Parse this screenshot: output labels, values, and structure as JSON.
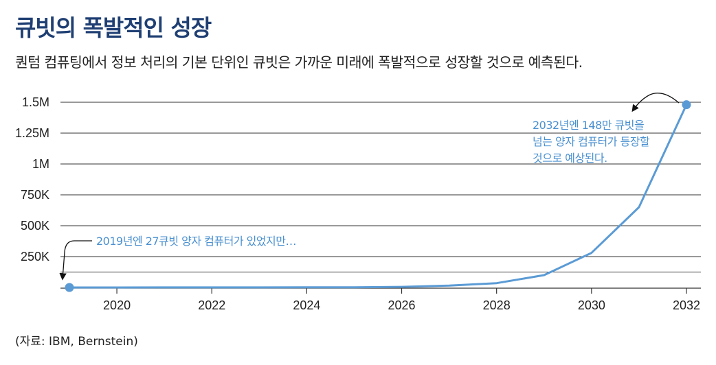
{
  "title": "큐빗의 폭발적인 성장",
  "subtitle": "퀀텀 컴퓨팅에서 정보 처리의 기본 단위인 큐빗은 가까운 미래에 폭발적으로 성장할 것으로 예측된다.",
  "source": "(자료: IBM, Bernstein)",
  "colors": {
    "title": "#1f3f73",
    "series": "#5b9bd5",
    "annotation": "#4a90d0",
    "grid": "#333333"
  },
  "chart_data": {
    "type": "line",
    "title": "큐빗의 폭발적인 성장",
    "subtitle": "퀀텀 컴퓨팅에서 정보 처리의 기본 단위인 큐빗은 가까운 미래에 폭발적으로 성장할 것으로 예측된다.",
    "xlabel": "",
    "ylabel": "",
    "xlim": [
      2019,
      2032
    ],
    "ylim": [
      0,
      1500000
    ],
    "grid": true,
    "legend": "none",
    "x_ticks": [
      {
        "value": 2020,
        "label": "2020"
      },
      {
        "value": 2022,
        "label": "2022"
      },
      {
        "value": 2024,
        "label": "2024"
      },
      {
        "value": 2026,
        "label": "2026"
      },
      {
        "value": 2028,
        "label": "2028"
      },
      {
        "value": 2030,
        "label": "2030"
      },
      {
        "value": 2032,
        "label": "2032"
      }
    ],
    "y_ticks": [
      {
        "value": 1500000,
        "label": "1.5M"
      },
      {
        "value": 1250000,
        "label": "1.25M"
      },
      {
        "value": 1000000,
        "label": "1M"
      },
      {
        "value": 750000,
        "label": "750K"
      },
      {
        "value": 500000,
        "label": "500K"
      },
      {
        "value": 250000,
        "label": "250K"
      },
      {
        "value": 125000,
        "label": ""
      }
    ],
    "series": [
      {
        "x": [
          2019,
          2020,
          2021,
          2022,
          2023,
          2024,
          2025,
          2026,
          2027,
          2028,
          2029,
          2030,
          2031,
          2032
        ],
        "y": [
          27,
          100,
          300,
          500,
          800,
          1000,
          1200,
          5000,
          15000,
          35000,
          100000,
          280000,
          650000,
          1480000
        ],
        "color": "#5b9bd5"
      }
    ],
    "highlighted_points": [
      {
        "x": 2019,
        "y": 27
      },
      {
        "x": 2032,
        "y": 1480000
      }
    ],
    "annotations": [
      {
        "lines": [
          "2019년엔 27큐빗 양자 컴퓨터가 있었지만…"
        ],
        "x": 2019,
        "y": 27
      },
      {
        "lines": [
          "2032년엔 148만 큐빗을",
          "넘는 양자 컴퓨터가 등장할",
          "것으로 예상된다."
        ],
        "x": 2032,
        "y": 1480000
      }
    ]
  }
}
